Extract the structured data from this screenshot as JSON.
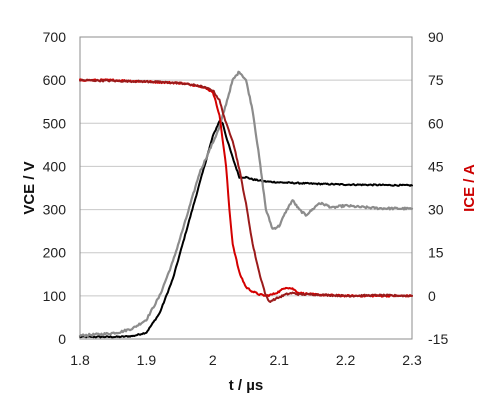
{
  "chart_data": {
    "type": "line",
    "xlabel": "t / µs",
    "ylabel": "VCE / V",
    "y2label": "ICE / A",
    "xlim": [
      1.8,
      2.3
    ],
    "ylim": [
      0,
      700
    ],
    "y2lim": [
      -15,
      90
    ],
    "xticks": [
      "1.8",
      "1.9",
      "2",
      "2.1",
      "2.2",
      "2.3"
    ],
    "yticks": [
      "0",
      "100",
      "200",
      "300",
      "400",
      "500",
      "600",
      "700"
    ],
    "y2ticks": [
      "-15",
      "0",
      "15",
      "30",
      "45",
      "60",
      "75",
      "90"
    ],
    "grid": "horizontal",
    "colors": {
      "vce_axis": "#111111",
      "ice_axis": "#cc0000",
      "black_trace": "#000000",
      "gray_trace": "#8c8c8c",
      "red_trace": "#d40000",
      "darkred_trace": "#9b1b1b"
    },
    "series": [
      {
        "axis": "y",
        "color": "#000000",
        "noise": 1.5,
        "x": [
          1.8,
          1.82,
          1.84,
          1.86,
          1.88,
          1.9,
          1.92,
          1.94,
          1.96,
          1.98,
          2.0,
          2.01,
          2.015,
          2.02,
          2.03,
          2.04,
          2.05,
          2.06,
          2.08,
          2.1,
          2.15,
          2.2,
          2.25,
          2.3
        ],
        "y": [
          5,
          5,
          5,
          5,
          7,
          15,
          60,
          140,
          250,
          360,
          470,
          505,
          500,
          470,
          420,
          375,
          375,
          370,
          365,
          363,
          360,
          358,
          357,
          356
        ]
      },
      {
        "axis": "y",
        "color": "#8c8c8c",
        "noise": 2.5,
        "x": [
          1.8,
          1.82,
          1.84,
          1.86,
          1.88,
          1.9,
          1.92,
          1.94,
          1.96,
          1.98,
          2.0,
          2.01,
          2.02,
          2.03,
          2.04,
          2.05,
          2.06,
          2.07,
          2.08,
          2.09,
          2.1,
          2.11,
          2.12,
          2.13,
          2.14,
          2.15,
          2.16,
          2.17,
          2.18,
          2.19,
          2.2,
          2.22,
          2.25,
          2.3
        ],
        "y": [
          8,
          10,
          12,
          16,
          25,
          45,
          100,
          180,
          280,
          385,
          455,
          490,
          545,
          600,
          620,
          600,
          530,
          420,
          300,
          255,
          262,
          295,
          322,
          300,
          287,
          300,
          315,
          311,
          304,
          307,
          309,
          306,
          303,
          302
        ]
      },
      {
        "axis": "y2",
        "color": "#d40000",
        "noise": 0.3,
        "x": [
          1.8,
          1.85,
          1.9,
          1.95,
          1.98,
          2.0,
          2.01,
          2.02,
          2.025,
          2.03,
          2.04,
          2.05,
          2.06,
          2.07,
          2.08,
          2.09,
          2.1,
          2.11,
          2.12,
          2.13,
          2.15,
          2.2,
          2.25,
          2.3
        ],
        "y": [
          75,
          75,
          74.5,
          74,
          73,
          71,
          63,
          45,
          30,
          18,
          8,
          3,
          1.5,
          0.5,
          0,
          0.5,
          1.5,
          3,
          2.5,
          1,
          0.5,
          0,
          0,
          0
        ]
      },
      {
        "axis": "y2",
        "color": "#9b1b1b",
        "noise": 0.3,
        "x": [
          1.8,
          1.9,
          1.95,
          1.98,
          2.0,
          2.01,
          2.02,
          2.03,
          2.04,
          2.05,
          2.06,
          2.07,
          2.08,
          2.085,
          2.09,
          2.095,
          2.1,
          2.11,
          2.12,
          2.13,
          2.15,
          2.2,
          2.25,
          2.3
        ],
        "y": [
          75,
          74.5,
          74,
          73,
          71.5,
          68,
          60,
          54,
          44,
          32,
          18,
          8,
          0,
          -2,
          -1.5,
          -1,
          -0.5,
          0.5,
          1,
          0.5,
          0.5,
          0,
          0.2,
          0
        ]
      }
    ]
  }
}
